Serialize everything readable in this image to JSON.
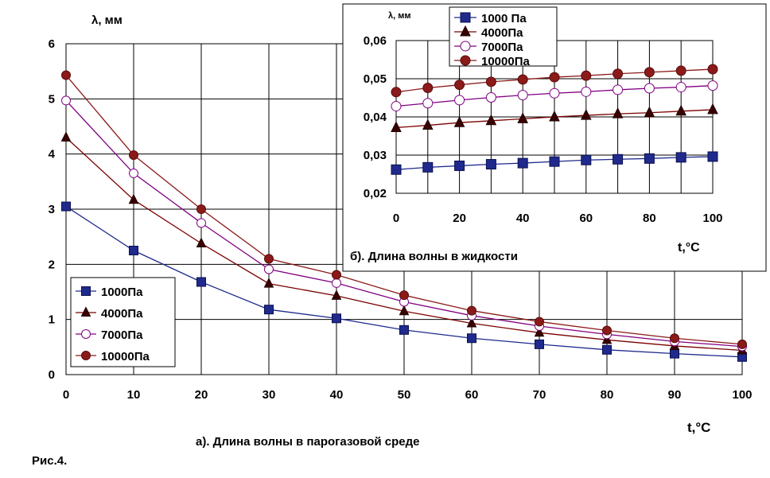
{
  "figure_label": "Рис.4.",
  "chart_data": [
    {
      "type": "line",
      "title": "а). Длина волны в парогазовой среде",
      "ylabel": "λ, мм",
      "xlabel": "t,°C",
      "xlim": [
        0,
        100
      ],
      "ylim": [
        0,
        6
      ],
      "x_ticks": [
        0,
        10,
        20,
        30,
        40,
        50,
        60,
        70,
        80,
        90,
        100
      ],
      "y_ticks": [
        0,
        1,
        2,
        3,
        4,
        5,
        6
      ],
      "y_tick_labels": [
        "0",
        "1",
        "2",
        "3",
        "4",
        "5",
        "6"
      ],
      "grid": true,
      "legend_position": "bottom-left",
      "x": [
        0,
        10,
        20,
        30,
        40,
        50,
        60,
        70,
        80,
        90,
        100
      ],
      "series": [
        {
          "name": "1000Па",
          "marker": "filled-square",
          "color": "#1f2a8c",
          "values": [
            3.05,
            2.25,
            1.68,
            1.18,
            1.02,
            0.81,
            0.66,
            0.55,
            0.45,
            0.38,
            0.32
          ]
        },
        {
          "name": "4000Па",
          "marker": "filled-triangle",
          "color": "#7a0000",
          "values": [
            4.3,
            3.17,
            2.38,
            1.65,
            1.43,
            1.15,
            0.93,
            0.76,
            0.63,
            0.52,
            0.44
          ]
        },
        {
          "name": "7000Па",
          "marker": "open-circle",
          "color": "#800080",
          "values": [
            4.97,
            3.65,
            2.75,
            1.91,
            1.66,
            1.32,
            1.07,
            0.88,
            0.73,
            0.6,
            0.51
          ]
        },
        {
          "name": "10000Па",
          "marker": "filled-circle",
          "color": "#8b1a1a",
          "values": [
            5.43,
            3.98,
            3.0,
            2.1,
            1.81,
            1.44,
            1.16,
            0.96,
            0.8,
            0.66,
            0.55
          ]
        }
      ]
    },
    {
      "type": "line",
      "title": "б). Длина волны в жидкости",
      "ylabel": "λ, мм",
      "xlabel": "t,°C",
      "xlim": [
        0,
        100
      ],
      "ylim": [
        0.02,
        0.06
      ],
      "x_ticks": [
        0,
        10,
        20,
        30,
        40,
        50,
        60,
        70,
        80,
        90,
        100
      ],
      "x_tick_labels": [
        "0",
        "20",
        "40",
        "60",
        "80",
        "100"
      ],
      "y_ticks": [
        0.02,
        0.03,
        0.04,
        0.05,
        0.06
      ],
      "y_tick_labels": [
        "0,02",
        "0,03",
        "0,04",
        "0,05",
        "0,06"
      ],
      "grid": true,
      "legend_position": "top-left",
      "x": [
        0,
        10,
        20,
        30,
        40,
        50,
        60,
        70,
        80,
        90,
        100
      ],
      "series": [
        {
          "name": "1000 Па",
          "marker": "filled-square",
          "color": "#1f2a8c",
          "values": [
            0.0262,
            0.0268,
            0.0272,
            0.0276,
            0.0279,
            0.0283,
            0.0287,
            0.0289,
            0.0291,
            0.0294,
            0.0296
          ]
        },
        {
          "name": "4000Па",
          "marker": "filled-triangle",
          "color": "#7a0000",
          "values": [
            0.0372,
            0.0378,
            0.0385,
            0.039,
            0.0395,
            0.04,
            0.0404,
            0.0408,
            0.0411,
            0.0415,
            0.0419
          ]
        },
        {
          "name": "7000Па",
          "marker": "open-circle",
          "color": "#800080",
          "values": [
            0.0428,
            0.0436,
            0.0444,
            0.0451,
            0.0457,
            0.0462,
            0.0466,
            0.0471,
            0.0475,
            0.0478,
            0.0482
          ]
        },
        {
          "name": "10000Па",
          "marker": "filled-circle",
          "color": "#8b1a1a",
          "values": [
            0.0465,
            0.0476,
            0.0484,
            0.0492,
            0.0498,
            0.0504,
            0.0508,
            0.0513,
            0.0517,
            0.0521,
            0.0525
          ]
        }
      ]
    }
  ]
}
